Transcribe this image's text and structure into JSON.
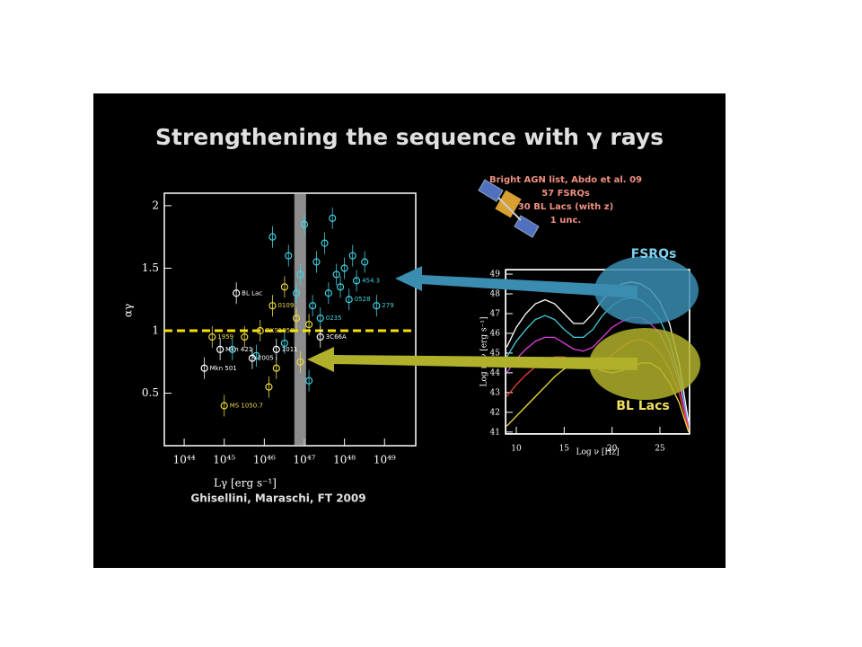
{
  "slide": {
    "title": "Strengthening the sequence with γ rays",
    "notes": [
      "Bright AGN list, Abdo et al. 09",
      "57 FSRQs",
      "30 BL Lacs (with z)",
      "1 unc."
    ],
    "fsrq_label": "FSRQs",
    "bllac_label": "BL Lacs",
    "credit": "Ghisellini, Maraschi, FT 2009"
  },
  "chart_data": [
    {
      "type": "scatter",
      "xlabel": "Lγ [erg s⁻¹]",
      "ylabel": "αγ",
      "xlog": true,
      "xlim": [
        3.2e+43,
        6e+49
      ],
      "ylim": [
        0.08,
        2.1
      ],
      "xticks": [
        {
          "value": 1e+44,
          "label": "10⁴⁴"
        },
        {
          "value": 1e+45,
          "label": "10⁴⁵"
        },
        {
          "value": 1e+46,
          "label": "10⁴⁶"
        },
        {
          "value": 1e+47,
          "label": "10⁴⁷"
        },
        {
          "value": 1e+48,
          "label": "10⁴⁸"
        },
        {
          "value": 1e+49,
          "label": "10⁴⁹"
        }
      ],
      "yticks": [
        0.5,
        1,
        1.5,
        2
      ],
      "hline": 1,
      "hline_color": "#f5e000",
      "band": [
        5.6e+46,
        1.1e+47
      ],
      "series": [
        {
          "color": "#40d0e0",
          "x": [
            2e+47,
            3.2e+47,
            6.3e+47,
            4e+47,
            1e+48,
            1.6e+48,
            1.6e+47,
            7.9e+47,
            3.2e+48,
            4e+46,
            1e+47,
            5e+47,
            1.6e+46,
            7.9e+46,
            2e+48,
            6.3e+48,
            2.5e+47,
            6.3e+46,
            1.3e+47,
            3.2e+46,
            6.3e+45,
            1.6e+45,
            1.3e+48
          ],
          "y": [
            1.55,
            1.7,
            1.45,
            1.3,
            1.5,
            1.6,
            1.2,
            1.35,
            1.55,
            1.6,
            1.85,
            1.9,
            1.75,
            1.45,
            1.4,
            1.2,
            1.1,
            1.3,
            0.6,
            0.9,
            0.8,
            0.85,
            1.25
          ],
          "point_labels": [
            null,
            null,
            null,
            null,
            null,
            null,
            null,
            null,
            null,
            null,
            null,
            null,
            null,
            null,
            "454.3",
            "279",
            "0235",
            null,
            null,
            null,
            null,
            null,
            "0528"
          ]
        },
        {
          "color": "#e8d840",
          "x": [
            1.6e+46,
            3.2e+46,
            6.3e+46,
            7.9e+45,
            3.2e+45,
            2e+46,
            7.9e+46,
            1e+45,
            1.3e+46,
            1.3e+47,
            5e+44
          ],
          "y": [
            1.2,
            1.35,
            1.1,
            1.0,
            0.95,
            0.7,
            0.75,
            0.4,
            0.55,
            1.05,
            0.95
          ],
          "point_labels": [
            "0109",
            null,
            null,
            "RXS1058",
            null,
            null,
            null,
            "MS 1050.7",
            null,
            null,
            "1959"
          ]
        },
        {
          "color": "#ffffff",
          "x": [
            3.2e+44,
            2e+45,
            7.9e+44,
            5e+45,
            2e+46,
            2.5e+47
          ],
          "y": [
            0.7,
            1.3,
            0.85,
            0.78,
            0.85,
            0.95
          ],
          "point_labels": [
            "Mkn 501",
            "BL Lac",
            "Mkn 421",
            "2005",
            "1011",
            "3C66A"
          ]
        }
      ]
    },
    {
      "type": "line",
      "xlabel": "Log ν [Hz]",
      "ylabel": "Log νLν [erg s⁻¹]",
      "xlim": [
        8.875,
        28.1
      ],
      "ylim": [
        40.9,
        49.23
      ],
      "xticks": [
        10,
        15,
        20,
        25
      ],
      "yticks": [
        41,
        42,
        43,
        44,
        45,
        46,
        47,
        48,
        49
      ],
      "x": [
        9,
        10,
        11,
        12,
        13,
        14,
        15,
        16,
        17,
        18,
        19,
        20,
        21,
        22,
        23,
        24,
        25,
        26,
        27,
        28
      ],
      "series": [
        {
          "color": "#ffffff",
          "values": [
            45.3,
            46.3,
            47.0,
            47.5,
            47.7,
            47.5,
            47.0,
            46.5,
            46.5,
            47.0,
            47.7,
            48.2,
            48.5,
            48.6,
            48.5,
            48.2,
            47.6,
            46.5,
            44.5,
            41.5
          ]
        },
        {
          "color": "#40d0e0",
          "values": [
            44.8,
            45.6,
            46.2,
            46.7,
            46.9,
            46.7,
            46.2,
            45.8,
            45.8,
            46.2,
            46.9,
            47.4,
            47.7,
            47.8,
            47.7,
            47.3,
            46.7,
            45.6,
            43.8,
            41.3
          ]
        },
        {
          "color": "#e040e0",
          "values": [
            44.0,
            44.7,
            45.2,
            45.6,
            45.8,
            45.8,
            45.5,
            45.2,
            45.1,
            45.3,
            45.8,
            46.3,
            46.6,
            46.8,
            46.8,
            46.5,
            46.0,
            45.0,
            43.5,
            41.2
          ]
        },
        {
          "color": "#f04030",
          "values": [
            42.8,
            43.4,
            43.9,
            44.3,
            44.6,
            44.8,
            44.8,
            44.6,
            44.4,
            44.3,
            44.5,
            44.9,
            45.3,
            45.6,
            45.7,
            45.5,
            45.0,
            44.2,
            43.0,
            41.1
          ]
        },
        {
          "color": "#f0e040",
          "values": [
            41.3,
            41.8,
            42.3,
            42.8,
            43.3,
            43.8,
            44.2,
            44.4,
            44.5,
            44.3,
            44.1,
            44.0,
            44.1,
            44.3,
            44.5,
            44.5,
            44.2,
            43.5,
            42.5,
            41.0
          ]
        }
      ]
    }
  ]
}
